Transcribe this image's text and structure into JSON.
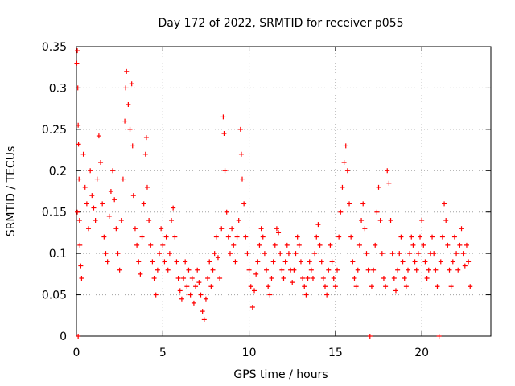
{
  "chart_data": {
    "type": "scatter",
    "title": "Day 172 of 2022, SRMTID for receiver p055",
    "xlabel": "GPS time / hours",
    "ylabel": "SRMTID / TECUs",
    "xlim": [
      0,
      24
    ],
    "ylim": [
      0,
      0.35
    ],
    "grid": true,
    "marker": "+",
    "series_color": "#ff0000",
    "x_ticks": [
      0,
      5,
      10,
      15,
      20
    ],
    "x_tick_labels": [
      "0",
      "5",
      "10",
      "15",
      "20"
    ],
    "y_ticks": [
      0,
      0.05,
      0.1,
      0.15,
      0.2,
      0.25,
      0.3,
      0.35
    ],
    "y_tick_labels": [
      "0",
      "0.05",
      "0.1",
      "0.15",
      "0.2",
      "0.25",
      "0.3",
      "0.35"
    ],
    "series": [
      {
        "name": "SRMTID",
        "points": [
          [
            0.02,
            0.33
          ],
          [
            0.05,
            0.345
          ],
          [
            0.08,
            0.3
          ],
          [
            0.1,
            0.255
          ],
          [
            0.12,
            0.232
          ],
          [
            0.15,
            0.19
          ],
          [
            0.18,
            0.14
          ],
          [
            0.2,
            0.11
          ],
          [
            0.25,
            0.085
          ],
          [
            0.05,
            0.15
          ],
          [
            0.3,
            0.07
          ],
          [
            0.1,
            0.0
          ],
          [
            0.4,
            0.22
          ],
          [
            0.5,
            0.18
          ],
          [
            0.6,
            0.16
          ],
          [
            0.7,
            0.13
          ],
          [
            0.8,
            0.2
          ],
          [
            0.9,
            0.17
          ],
          [
            1.0,
            0.155
          ],
          [
            1.1,
            0.14
          ],
          [
            1.2,
            0.19
          ],
          [
            1.3,
            0.242
          ],
          [
            1.4,
            0.21
          ],
          [
            1.5,
            0.16
          ],
          [
            1.6,
            0.12
          ],
          [
            1.7,
            0.1
          ],
          [
            1.8,
            0.09
          ],
          [
            1.9,
            0.145
          ],
          [
            2.0,
            0.175
          ],
          [
            2.1,
            0.2
          ],
          [
            2.2,
            0.165
          ],
          [
            2.3,
            0.13
          ],
          [
            2.4,
            0.1
          ],
          [
            2.5,
            0.08
          ],
          [
            2.6,
            0.14
          ],
          [
            2.7,
            0.19
          ],
          [
            2.8,
            0.26
          ],
          [
            2.85,
            0.3
          ],
          [
            2.9,
            0.32
          ],
          [
            3.0,
            0.28
          ],
          [
            3.1,
            0.25
          ],
          [
            3.2,
            0.305
          ],
          [
            3.25,
            0.23
          ],
          [
            3.3,
            0.17
          ],
          [
            3.4,
            0.13
          ],
          [
            3.5,
            0.11
          ],
          [
            3.6,
            0.09
          ],
          [
            3.7,
            0.075
          ],
          [
            3.8,
            0.12
          ],
          [
            3.9,
            0.16
          ],
          [
            4.0,
            0.22
          ],
          [
            4.05,
            0.24
          ],
          [
            4.1,
            0.18
          ],
          [
            4.2,
            0.14
          ],
          [
            4.3,
            0.11
          ],
          [
            4.4,
            0.09
          ],
          [
            4.5,
            0.07
          ],
          [
            4.6,
            0.05
          ],
          [
            4.7,
            0.08
          ],
          [
            4.8,
            0.1
          ],
          [
            4.9,
            0.13
          ],
          [
            5.0,
            0.11
          ],
          [
            5.1,
            0.09
          ],
          [
            5.2,
            0.12
          ],
          [
            5.3,
            0.08
          ],
          [
            5.4,
            0.1
          ],
          [
            5.5,
            0.14
          ],
          [
            5.6,
            0.155
          ],
          [
            5.7,
            0.12
          ],
          [
            5.8,
            0.09
          ],
          [
            5.9,
            0.07
          ],
          [
            6.0,
            0.055
          ],
          [
            6.1,
            0.045
          ],
          [
            6.2,
            0.07
          ],
          [
            6.3,
            0.09
          ],
          [
            6.4,
            0.06
          ],
          [
            6.5,
            0.08
          ],
          [
            6.6,
            0.05
          ],
          [
            6.7,
            0.07
          ],
          [
            6.8,
            0.04
          ],
          [
            6.9,
            0.06
          ],
          [
            7.0,
            0.08
          ],
          [
            7.1,
            0.065
          ],
          [
            7.2,
            0.05
          ],
          [
            7.3,
            0.03
          ],
          [
            7.4,
            0.02
          ],
          [
            7.5,
            0.045
          ],
          [
            7.6,
            0.07
          ],
          [
            7.7,
            0.09
          ],
          [
            7.8,
            0.06
          ],
          [
            7.9,
            0.08
          ],
          [
            8.0,
            0.1
          ],
          [
            8.1,
            0.12
          ],
          [
            8.2,
            0.095
          ],
          [
            8.3,
            0.07
          ],
          [
            8.4,
            0.13
          ],
          [
            8.5,
            0.265
          ],
          [
            8.55,
            0.245
          ],
          [
            8.6,
            0.2
          ],
          [
            8.7,
            0.15
          ],
          [
            8.8,
            0.12
          ],
          [
            8.9,
            0.1
          ],
          [
            9.0,
            0.13
          ],
          [
            9.1,
            0.11
          ],
          [
            9.2,
            0.09
          ],
          [
            9.3,
            0.12
          ],
          [
            9.4,
            0.14
          ],
          [
            9.5,
            0.25
          ],
          [
            9.55,
            0.22
          ],
          [
            9.6,
            0.19
          ],
          [
            9.7,
            0.16
          ],
          [
            9.8,
            0.12
          ],
          [
            9.9,
            0.1
          ],
          [
            10.0,
            0.08
          ],
          [
            10.1,
            0.06
          ],
          [
            10.2,
            0.035
          ],
          [
            10.3,
            0.055
          ],
          [
            10.4,
            0.075
          ],
          [
            10.5,
            0.09
          ],
          [
            10.6,
            0.11
          ],
          [
            10.7,
            0.13
          ],
          [
            10.8,
            0.12
          ],
          [
            10.9,
            0.1
          ],
          [
            11.0,
            0.08
          ],
          [
            11.1,
            0.06
          ],
          [
            11.2,
            0.05
          ],
          [
            11.3,
            0.07
          ],
          [
            11.4,
            0.09
          ],
          [
            11.5,
            0.11
          ],
          [
            11.6,
            0.13
          ],
          [
            11.7,
            0.125
          ],
          [
            11.8,
            0.1
          ],
          [
            11.9,
            0.08
          ],
          [
            12.0,
            0.07
          ],
          [
            12.1,
            0.09
          ],
          [
            12.2,
            0.11
          ],
          [
            12.3,
            0.1
          ],
          [
            12.4,
            0.08
          ],
          [
            12.5,
            0.065
          ],
          [
            12.6,
            0.08
          ],
          [
            12.7,
            0.1
          ],
          [
            12.8,
            0.12
          ],
          [
            12.9,
            0.11
          ],
          [
            13.0,
            0.09
          ],
          [
            13.1,
            0.07
          ],
          [
            13.2,
            0.06
          ],
          [
            13.3,
            0.05
          ],
          [
            13.4,
            0.07
          ],
          [
            13.5,
            0.09
          ],
          [
            13.6,
            0.08
          ],
          [
            13.7,
            0.07
          ],
          [
            13.8,
            0.1
          ],
          [
            13.9,
            0.12
          ],
          [
            14.0,
            0.135
          ],
          [
            14.1,
            0.11
          ],
          [
            14.2,
            0.09
          ],
          [
            14.3,
            0.07
          ],
          [
            14.4,
            0.06
          ],
          [
            14.5,
            0.05
          ],
          [
            14.6,
            0.08
          ],
          [
            14.7,
            0.11
          ],
          [
            14.8,
            0.09
          ],
          [
            14.9,
            0.07
          ],
          [
            15.0,
            0.06
          ],
          [
            15.1,
            0.08
          ],
          [
            15.2,
            0.12
          ],
          [
            15.3,
            0.15
          ],
          [
            15.4,
            0.18
          ],
          [
            15.5,
            0.21
          ],
          [
            15.6,
            0.23
          ],
          [
            15.7,
            0.2
          ],
          [
            15.8,
            0.16
          ],
          [
            15.9,
            0.12
          ],
          [
            16.0,
            0.09
          ],
          [
            16.1,
            0.07
          ],
          [
            16.2,
            0.06
          ],
          [
            16.3,
            0.08
          ],
          [
            16.4,
            0.11
          ],
          [
            16.5,
            0.14
          ],
          [
            16.6,
            0.16
          ],
          [
            16.7,
            0.13
          ],
          [
            16.8,
            0.1
          ],
          [
            16.9,
            0.08
          ],
          [
            17.0,
            0.0
          ],
          [
            17.1,
            0.06
          ],
          [
            17.2,
            0.08
          ],
          [
            17.3,
            0.11
          ],
          [
            17.4,
            0.15
          ],
          [
            17.5,
            0.18
          ],
          [
            17.6,
            0.14
          ],
          [
            17.7,
            0.1
          ],
          [
            17.8,
            0.07
          ],
          [
            17.9,
            0.06
          ],
          [
            18.0,
            0.2
          ],
          [
            18.1,
            0.185
          ],
          [
            18.2,
            0.14
          ],
          [
            18.3,
            0.1
          ],
          [
            18.4,
            0.07
          ],
          [
            18.5,
            0.055
          ],
          [
            18.6,
            0.08
          ],
          [
            18.7,
            0.1
          ],
          [
            18.8,
            0.12
          ],
          [
            18.9,
            0.09
          ],
          [
            19.0,
            0.07
          ],
          [
            19.1,
            0.06
          ],
          [
            19.2,
            0.08
          ],
          [
            19.3,
            0.1
          ],
          [
            19.4,
            0.12
          ],
          [
            19.5,
            0.11
          ],
          [
            19.6,
            0.09
          ],
          [
            19.7,
            0.08
          ],
          [
            19.8,
            0.1
          ],
          [
            19.9,
            0.12
          ],
          [
            20.0,
            0.14
          ],
          [
            20.1,
            0.11
          ],
          [
            20.2,
            0.09
          ],
          [
            20.3,
            0.07
          ],
          [
            20.4,
            0.08
          ],
          [
            20.5,
            0.1
          ],
          [
            20.6,
            0.12
          ],
          [
            20.7,
            0.1
          ],
          [
            20.8,
            0.08
          ],
          [
            20.9,
            0.06
          ],
          [
            21.0,
            0.0
          ],
          [
            21.1,
            0.09
          ],
          [
            21.2,
            0.12
          ],
          [
            21.3,
            0.16
          ],
          [
            21.4,
            0.14
          ],
          [
            21.5,
            0.11
          ],
          [
            21.6,
            0.08
          ],
          [
            21.7,
            0.06
          ],
          [
            21.8,
            0.09
          ],
          [
            21.9,
            0.12
          ],
          [
            22.0,
            0.1
          ],
          [
            22.1,
            0.08
          ],
          [
            22.2,
            0.11
          ],
          [
            22.3,
            0.13
          ],
          [
            22.4,
            0.1
          ],
          [
            22.5,
            0.085
          ],
          [
            22.6,
            0.11
          ],
          [
            22.7,
            0.09
          ],
          [
            22.8,
            0.06
          ]
        ]
      }
    ]
  }
}
